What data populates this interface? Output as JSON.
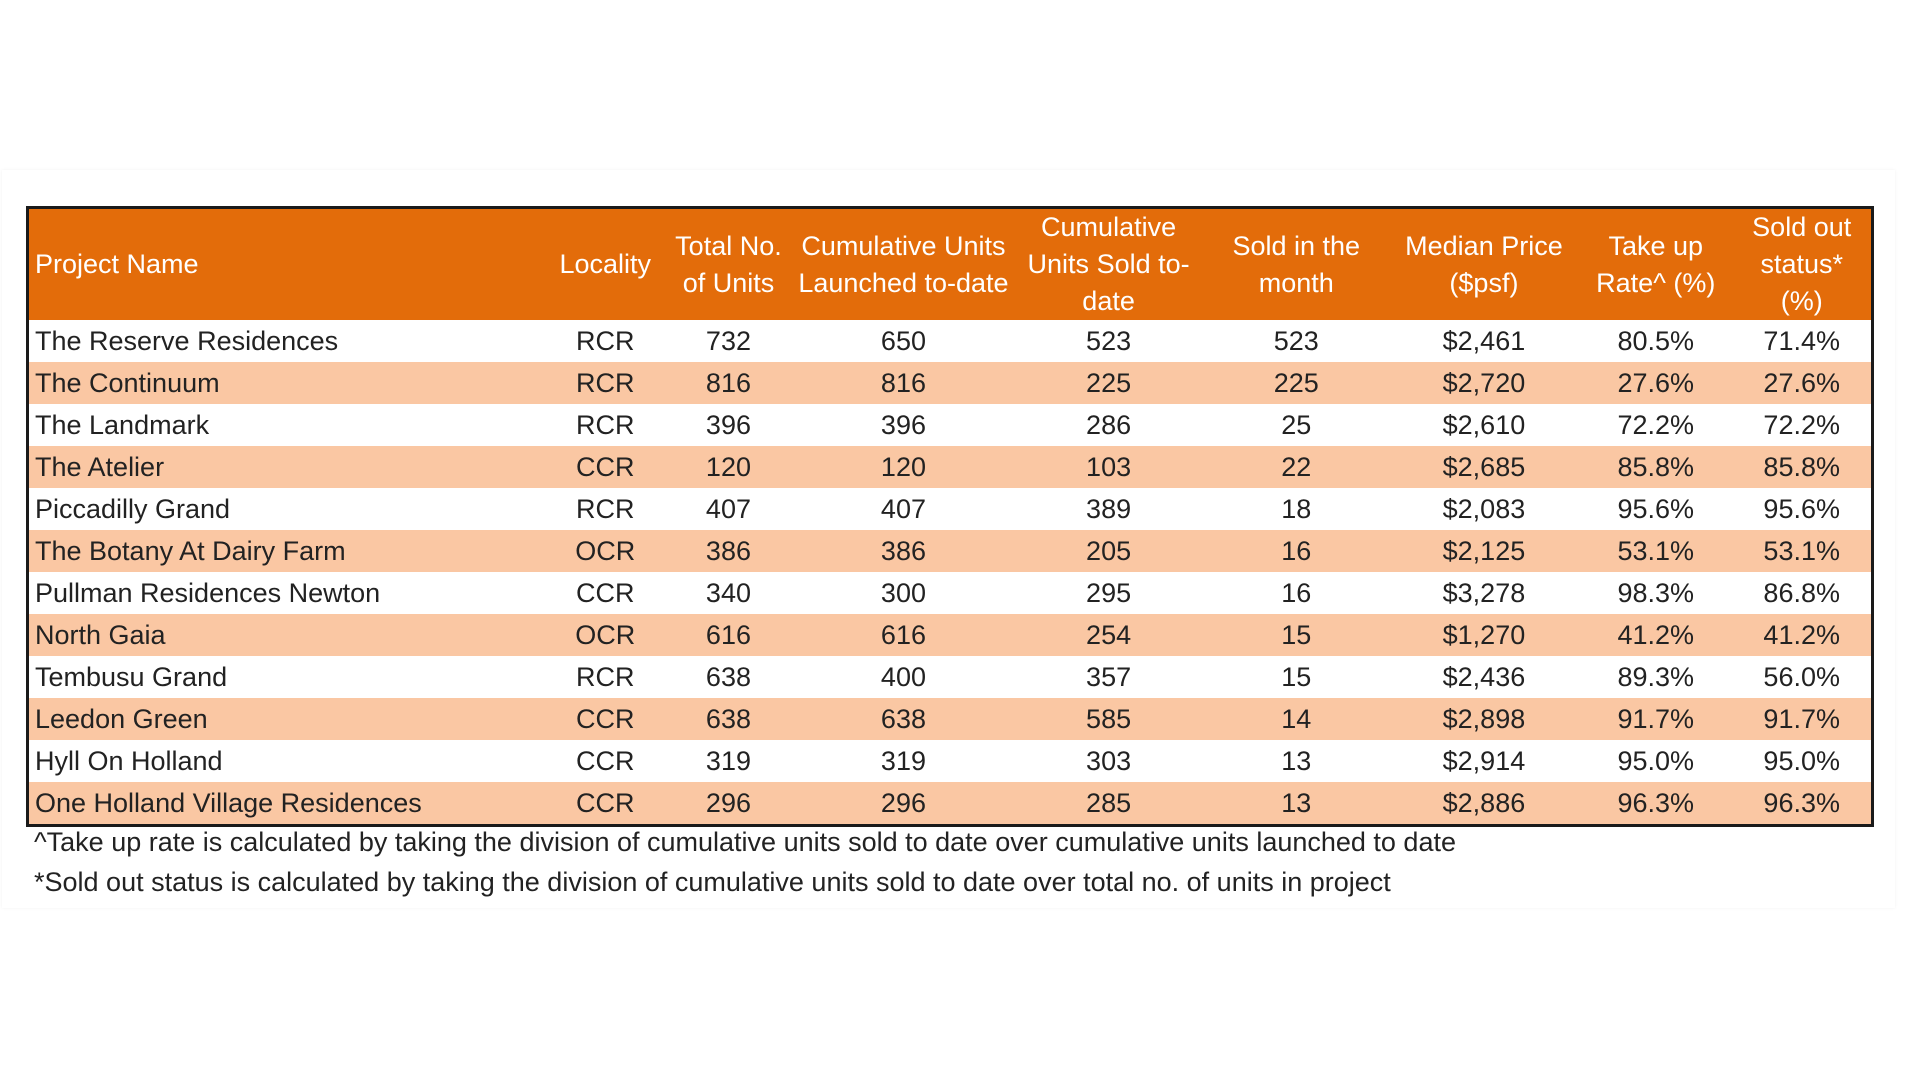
{
  "table": {
    "headers": [
      "Project Name",
      "Locality",
      "Total No. of Units",
      "Cumulative Units Launched to-date",
      "Cumulative Units Sold to-date",
      "Sold in the month",
      "Median Price ($psf)",
      "Take up Rate^ (%)",
      "Sold out status* (%)"
    ],
    "rows": [
      [
        "The Reserve Residences",
        "RCR",
        "732",
        "650",
        "523",
        "523",
        "$2,461",
        "80.5%",
        "71.4%"
      ],
      [
        "The Continuum",
        "RCR",
        "816",
        "816",
        "225",
        "225",
        "$2,720",
        "27.6%",
        "27.6%"
      ],
      [
        "The Landmark",
        "RCR",
        "396",
        "396",
        "286",
        "25",
        "$2,610",
        "72.2%",
        "72.2%"
      ],
      [
        "The Atelier",
        "CCR",
        "120",
        "120",
        "103",
        "22",
        "$2,685",
        "85.8%",
        "85.8%"
      ],
      [
        "Piccadilly Grand",
        "RCR",
        "407",
        "407",
        "389",
        "18",
        "$2,083",
        "95.6%",
        "95.6%"
      ],
      [
        "The Botany At Dairy Farm",
        "OCR",
        "386",
        "386",
        "205",
        "16",
        "$2,125",
        "53.1%",
        "53.1%"
      ],
      [
        "Pullman Residences Newton",
        "CCR",
        "340",
        "300",
        "295",
        "16",
        "$3,278",
        "98.3%",
        "86.8%"
      ],
      [
        "North Gaia",
        "OCR",
        "616",
        "616",
        "254",
        "15",
        "$1,270",
        "41.2%",
        "41.2%"
      ],
      [
        "Tembusu Grand",
        "RCR",
        "638",
        "400",
        "357",
        "15",
        "$2,436",
        "89.3%",
        "56.0%"
      ],
      [
        "Leedon Green",
        "CCR",
        "638",
        "638",
        "585",
        "14",
        "$2,898",
        "91.7%",
        "91.7%"
      ],
      [
        "Hyll On Holland",
        "CCR",
        "319",
        "319",
        "303",
        "13",
        "$2,914",
        "95.0%",
        "95.0%"
      ],
      [
        "One Holland Village Residences",
        "CCR",
        "296",
        "296",
        "285",
        "13",
        "$2,886",
        "96.3%",
        "96.3%"
      ]
    ]
  },
  "notes": [
    "^Take up rate is calculated by taking the division of cumulative units sold to date over cumulative units launched to date",
    "*Sold out status is calculated by taking the division of cumulative units sold to date over total no. of units in project"
  ],
  "colors": {
    "header_bg": "#e36c0a",
    "stripe_bg": "#fac7a3",
    "border": "#1a1a1a"
  }
}
